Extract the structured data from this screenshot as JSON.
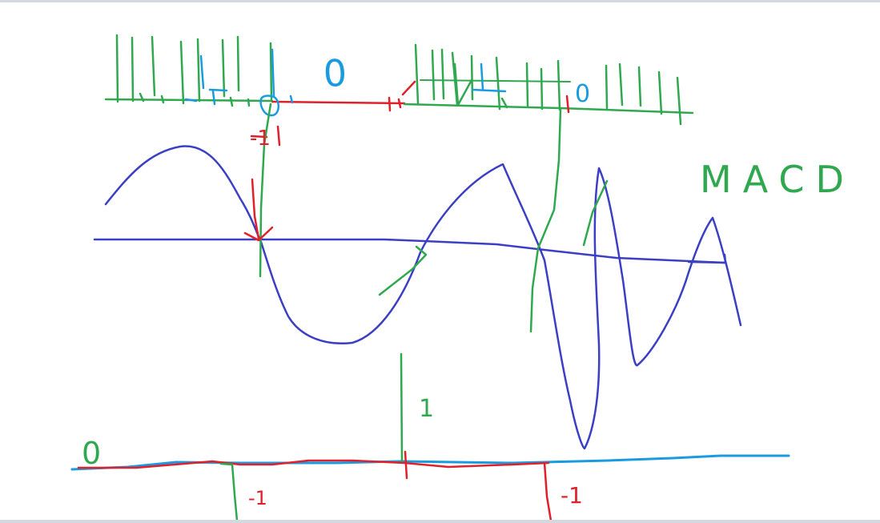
{
  "whiteboard": {
    "title_text": "MACD",
    "zero_label_top_left": "0",
    "zero_label_top_right": "0",
    "zero_label_bottom": "0",
    "minus_one_top": "-1",
    "plus_one_bottom": "1",
    "minus_one_bottom_left": "-1",
    "minus_one_bottom_right": "-1"
  },
  "colors": {
    "macd_line": "#3b3fc4",
    "signal_line": "#3b3fc4",
    "histogram": "#2fa84f",
    "bullish_cross_marks": "#2fa84f",
    "bearish_marks": "#e0202a",
    "zero_markers": "#1a9be0",
    "bottom_baseline": "#1a9be0"
  },
  "icons": {
    "zero_circle_top": "circle-marker-icon",
    "cross_arrow": "down-arrow-icon"
  }
}
